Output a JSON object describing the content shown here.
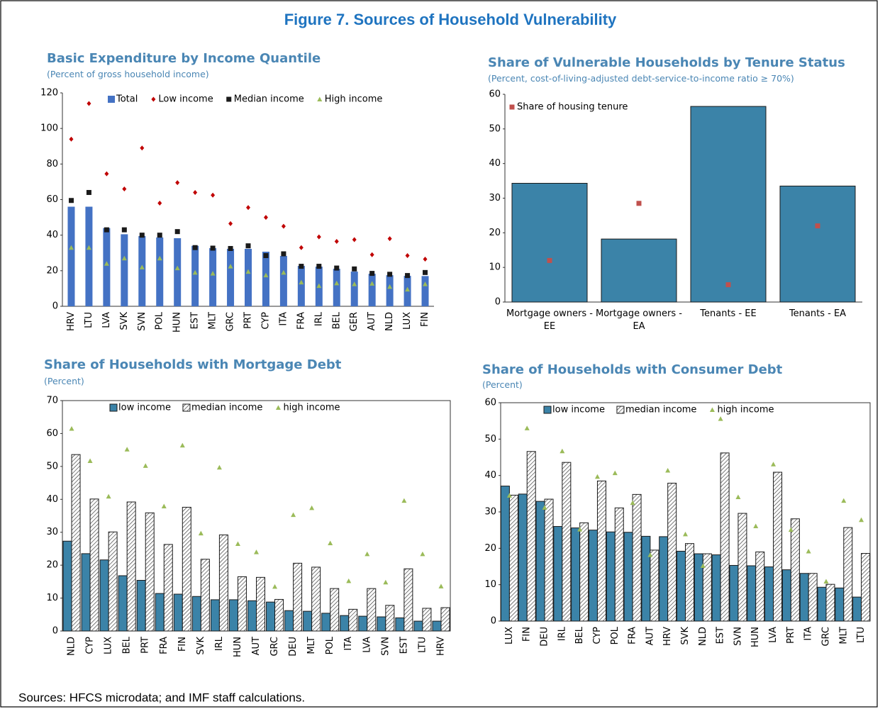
{
  "title": "Figure 7. Sources of Household Vulnerability",
  "chart_data": [
    {
      "type": "bar",
      "title": "Basic Expenditure by Income Quantile",
      "subtitle": "(Percent of gross household income)",
      "categories": [
        "HRV",
        "LTU",
        "LVA",
        "SVK",
        "SVN",
        "POL",
        "HUN",
        "EST",
        "MLT",
        "GRC",
        "PRT",
        "CYP",
        "ITA",
        "FRA",
        "IRL",
        "BEL",
        "GER",
        "AUT",
        "NLD",
        "LUX",
        "FIN"
      ],
      "series": [
        {
          "name": "Total",
          "color": "#4472c4",
          "marker": "bar",
          "values": [
            56,
            56,
            44,
            40.5,
            39.5,
            38.7,
            38.3,
            34,
            32.7,
            32.3,
            32.3,
            30.7,
            28.3,
            22.7,
            22.3,
            21.1,
            19.5,
            18.3,
            17.5,
            17.1,
            17
          ]
        },
        {
          "name": "Low income",
          "color": "#c00000",
          "marker": "diamond",
          "values": [
            94,
            114,
            74.5,
            66,
            89,
            58,
            69.5,
            64,
            62.5,
            46.5,
            55.5,
            50,
            45,
            33,
            39,
            36.5,
            37.5,
            29,
            38,
            28.5,
            26.5
          ]
        },
        {
          "name": "Median income",
          "color": "#1a1a1a",
          "marker": "square",
          "values": [
            59.5,
            64,
            43,
            43,
            40,
            40,
            42,
            33,
            32.7,
            32.5,
            34,
            28.5,
            29.5,
            22.5,
            22.5,
            21.5,
            21,
            18.5,
            18,
            17.3,
            19
          ]
        },
        {
          "name": "High income",
          "color": "#9bbb59",
          "marker": "triangle",
          "values": [
            33,
            33,
            24,
            27,
            22,
            27,
            21.5,
            19,
            18.5,
            22.5,
            19.5,
            17.5,
            19,
            13.5,
            11.5,
            13,
            12.5,
            12.8,
            11,
            9.5,
            12.5
          ]
        }
      ],
      "ylim": [
        0,
        120
      ],
      "yticks": [
        0,
        20,
        40,
        60,
        80,
        100,
        120
      ]
    },
    {
      "type": "bar",
      "title": "Share of Vulnerable Households by Tenure Status",
      "subtitle": "(Percent, cost-of-living-adjusted debt-service-to-income ratio ≥ 70%)",
      "categories": [
        "Mortgage owners - EE",
        "Mortgage owners - EA",
        "Tenants - EE",
        "Tenants - EA"
      ],
      "series": [
        {
          "color": "#3b83a8",
          "marker": "bar",
          "values": [
            34.3,
            18.2,
            56.5,
            33.5
          ]
        },
        {
          "name": "Share of housing tenure",
          "color": "#c0504d",
          "marker": "square",
          "values": [
            12,
            28.5,
            5,
            22
          ]
        }
      ],
      "edgecolor": "#1a1a1a",
      "ylim": [
        0,
        60
      ],
      "yticks": [
        0,
        10,
        20,
        30,
        40,
        50,
        60
      ]
    },
    {
      "type": "bar",
      "title": "Share of Households with Mortgage Debt",
      "subtitle": "(Percent)",
      "categories": [
        "NLD",
        "CYP",
        "LUX",
        "BEL",
        "PRT",
        "FRA",
        "FIN",
        "SVK",
        "IRL",
        "HUN",
        "AUT",
        "GRC",
        "DEU",
        "MLT",
        "POL",
        "ITA",
        "LVA",
        "SVN",
        "EST",
        "LTU",
        "HRV"
      ],
      "series": [
        {
          "name": "low income",
          "color": "#3b83a8",
          "marker": "bar",
          "values": [
            27.3,
            23.5,
            21.6,
            16.8,
            15.4,
            11.4,
            11.2,
            10.5,
            9.5,
            9.5,
            9.2,
            8.8,
            6.2,
            6,
            5.4,
            4.7,
            4.5,
            4.3,
            4,
            3,
            3
          ]
        },
        {
          "name": "median income",
          "color": "#ffffff",
          "pattern": "hatch",
          "marker": "bar",
          "values": [
            53.6,
            40.1,
            30.1,
            39.2,
            35.9,
            26.3,
            37.6,
            21.8,
            29.2,
            16.5,
            16.3,
            9.6,
            20.6,
            19.4,
            12.9,
            6.6,
            12.9,
            7.8,
            18.9,
            6.9,
            7.1
          ]
        },
        {
          "name": "high income",
          "color": "#9bbb59",
          "marker": "triangle",
          "values": [
            61.5,
            51.7,
            40.9,
            55.2,
            50.2,
            37.9,
            56.4,
            29.7,
            49.7,
            26.5,
            24,
            13.5,
            35.3,
            37.4,
            26.7,
            15.2,
            23.4,
            14.8,
            39.6,
            23.4,
            13.6
          ]
        }
      ],
      "edgecolor": "#1a1a1a",
      "frame": true,
      "ylim": [
        0,
        70
      ],
      "yticks": [
        0,
        10,
        20,
        30,
        40,
        50,
        60,
        70
      ]
    },
    {
      "type": "bar",
      "title": "Share of Households with Consumer Debt",
      "subtitle": "(Percent)",
      "categories": [
        "LUX",
        "FIN",
        "DEU",
        "IRL",
        "BEL",
        "CYP",
        "POL",
        "FRA",
        "AUT",
        "HRV",
        "SVK",
        "NLD",
        "EST",
        "SVN",
        "HUN",
        "LVA",
        "PRT",
        "ITA",
        "GRC",
        "MLT",
        "LTU"
      ],
      "series": [
        {
          "name": "low income",
          "color": "#3b83a8",
          "marker": "bar",
          "values": [
            37.1,
            34.9,
            32.9,
            26,
            25.6,
            25,
            24.5,
            24.4,
            23.3,
            23.2,
            19.2,
            18.5,
            18.2,
            15.3,
            15.2,
            14.9,
            14.1,
            13.1,
            9.3,
            9.1,
            6.6
          ]
        },
        {
          "name": "median income",
          "color": "#ffffff",
          "pattern": "hatch",
          "marker": "bar",
          "values": [
            34.6,
            46.6,
            33.5,
            43.6,
            27,
            38.5,
            31.1,
            34.8,
            19.5,
            37.9,
            21.3,
            18.5,
            46.2,
            29.6,
            19,
            40.9,
            28.1,
            13.1,
            10.1,
            25.7,
            18.6
          ]
        },
        {
          "name": "high income",
          "color": "#9bbb59",
          "marker": "triangle",
          "values": [
            34.5,
            53,
            31.2,
            46.7,
            25.2,
            39.7,
            40.7,
            32.5,
            18.2,
            41.4,
            23.9,
            15.2,
            55.6,
            34.1,
            26.1,
            43.1,
            25.1,
            19.2,
            10.9,
            33.1,
            27.8
          ]
        }
      ],
      "edgecolor": "#1a1a1a",
      "frame": true,
      "ylim": [
        0,
        60
      ],
      "yticks": [
        0,
        10,
        20,
        30,
        40,
        50,
        60
      ]
    }
  ],
  "source": "Sources: HFCS microdata; and IMF staff calculations."
}
